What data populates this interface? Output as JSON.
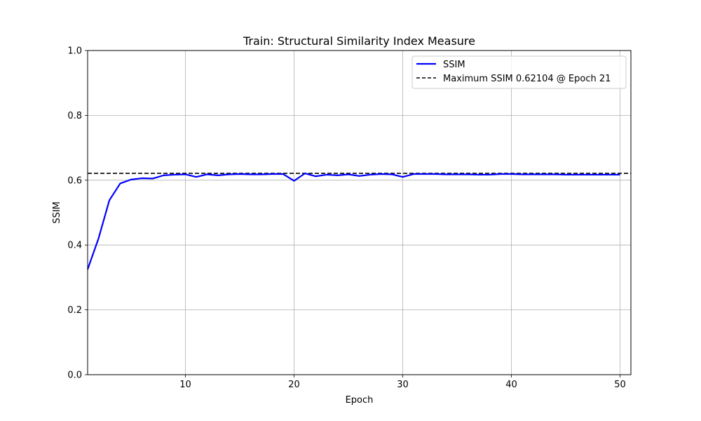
{
  "chart_data": {
    "type": "line",
    "title": "Train: Structural Similarity Index Measure",
    "xlabel": "Epoch",
    "ylabel": "SSIM",
    "xlim": [
      1,
      51
    ],
    "ylim": [
      0.0,
      1.0
    ],
    "grid": true,
    "legend_position": "top-right",
    "x_ticks": [
      10,
      20,
      30,
      40,
      50
    ],
    "x_tick_labels": [
      "10",
      "20",
      "30",
      "40",
      "50"
    ],
    "y_ticks": [
      0.0,
      0.2,
      0.4,
      0.6,
      0.8,
      1.0
    ],
    "y_tick_labels": [
      "0.0",
      "0.2",
      "0.4",
      "0.6",
      "0.8",
      "1.0"
    ],
    "x": [
      1,
      2,
      3,
      4,
      5,
      6,
      7,
      8,
      9,
      10,
      11,
      12,
      13,
      14,
      15,
      16,
      17,
      18,
      19,
      20,
      21,
      22,
      23,
      24,
      25,
      26,
      27,
      28,
      29,
      30,
      31,
      32,
      33,
      34,
      35,
      36,
      37,
      38,
      39,
      40,
      41,
      42,
      43,
      44,
      45,
      46,
      47,
      48,
      49,
      50
    ],
    "series": [
      {
        "name": "SSIM",
        "color": "#0000ff",
        "style": "solid",
        "values": [
          0.325,
          0.42,
          0.538,
          0.59,
          0.602,
          0.606,
          0.605,
          0.615,
          0.617,
          0.618,
          0.61,
          0.618,
          0.615,
          0.618,
          0.619,
          0.618,
          0.618,
          0.619,
          0.619,
          0.598,
          0.621,
          0.612,
          0.617,
          0.615,
          0.618,
          0.613,
          0.617,
          0.619,
          0.618,
          0.61,
          0.619,
          0.619,
          0.619,
          0.618,
          0.618,
          0.618,
          0.617,
          0.617,
          0.619,
          0.619,
          0.618,
          0.618,
          0.618,
          0.618,
          0.617,
          0.617,
          0.617,
          0.617,
          0.617,
          0.617
        ]
      }
    ],
    "reference_line": {
      "label": "Maximum SSIM 0.62104 @ Epoch 21",
      "value": 0.62104,
      "color": "#000000",
      "style": "dashed"
    }
  }
}
